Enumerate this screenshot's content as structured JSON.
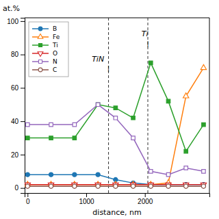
{
  "chart_data": {
    "type": "line",
    "xlabel": "distance, nm",
    "ylabel": "at.%",
    "x": [
      0,
      400,
      800,
      1200,
      1500,
      1800,
      2100,
      2400,
      2700,
      3000
    ],
    "series": [
      {
        "name": "B",
        "marker": "circle",
        "values": [
          8,
          8,
          8,
          8,
          5,
          3,
          2,
          2,
          2,
          2
        ]
      },
      {
        "name": "Fe",
        "marker": "triangle-up-open",
        "values": [
          2,
          2,
          2,
          2,
          2,
          2,
          2,
          3,
          55,
          72
        ]
      },
      {
        "name": "Ti",
        "marker": "square",
        "values": [
          30,
          30,
          30,
          50,
          48,
          42,
          75,
          52,
          22,
          38
        ]
      },
      {
        "name": "O",
        "marker": "triangle-down-open",
        "values": [
          2,
          2,
          2,
          2,
          2,
          2,
          2,
          2,
          2,
          2
        ]
      },
      {
        "name": "N",
        "marker": "square-open",
        "values": [
          38,
          38,
          38,
          50,
          42,
          30,
          10,
          8,
          12,
          10
        ]
      },
      {
        "name": "C",
        "marker": "circle-open",
        "values": [
          1,
          1,
          1,
          1,
          1,
          1,
          1,
          1,
          1,
          1
        ]
      }
    ],
    "vlines": [
      1380,
      2050
    ],
    "annotations": [
      {
        "text": "TiN",
        "x": 1200,
        "y": 75
      },
      {
        "text": "|",
        "x": 1380,
        "y": 73
      },
      {
        "text": "Ti",
        "x": 2000,
        "y": 90
      },
      {
        "text": "|",
        "x": 2050,
        "y": 88
      }
    ],
    "xlim": [
      -50,
      3100
    ],
    "ylim": [
      -3,
      102
    ],
    "xticks": [
      0,
      1000,
      2000
    ],
    "yticks": [
      0,
      20,
      40,
      60,
      80,
      100
    ],
    "grid": false,
    "legend": "upper left"
  }
}
